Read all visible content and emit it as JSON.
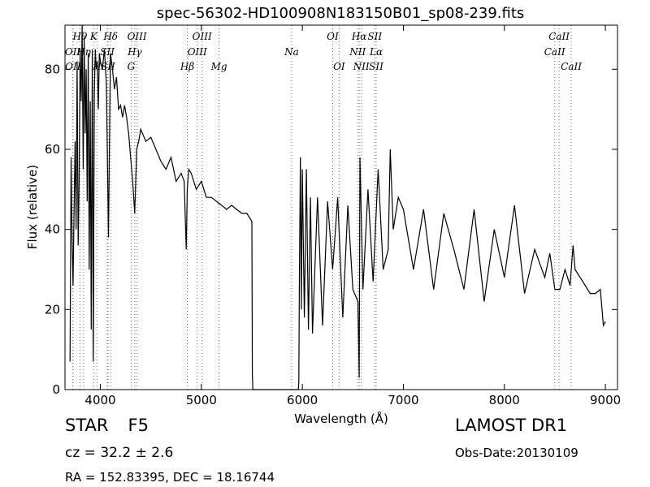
{
  "chart_data": {
    "type": "line",
    "title": "spec-56302-HD100908N183150B01_sp08-239.fits",
    "xlabel": "Wavelength (Å)",
    "ylabel": "Flux (relative)",
    "xlim": [
      3650,
      9120
    ],
    "ylim": [
      0,
      91
    ],
    "xticks": [
      4000,
      5000,
      6000,
      7000,
      8000,
      9000
    ],
    "yticks": [
      0,
      20,
      40,
      60,
      80
    ],
    "grid": false,
    "line_color": "#000000",
    "marker_color": "#2ca02c",
    "series": [
      {
        "x": [
          3700,
          3710,
          3720,
          3730,
          3740,
          3750,
          3760,
          3770,
          3780,
          3790,
          3800,
          3810,
          3820,
          3830,
          3840,
          3850,
          3860,
          3870,
          3880,
          3890,
          3900,
          3910,
          3920,
          3930,
          3940,
          3950,
          3960,
          3970,
          3980,
          3990,
          4000,
          4020,
          4040,
          4060,
          4080,
          4100,
          4120,
          4140,
          4160,
          4180,
          4200,
          4220,
          4240,
          4260,
          4280,
          4300,
          4320,
          4340,
          4360,
          4380,
          4400,
          4450,
          4500,
          4550,
          4600,
          4650,
          4700,
          4750,
          4800,
          4830,
          4850,
          4861,
          4875,
          4900,
          4950,
          5000,
          5050,
          5100,
          5150,
          5200,
          5250,
          5300,
          5350,
          5400,
          5450,
          5500,
          5505,
          5510,
          5800,
          5960,
          5965,
          5970,
          5980,
          5990,
          6000,
          6020,
          6040,
          6060,
          6080,
          6100,
          6150,
          6200,
          6250,
          6300,
          6350,
          6400,
          6450,
          6500,
          6550,
          6563,
          6570,
          6600,
          6650,
          6700,
          6750,
          6800,
          6850,
          6870,
          6900,
          6950,
          7000,
          7100,
          7200,
          7300,
          7400,
          7500,
          7600,
          7700,
          7800,
          7900,
          8000,
          8100,
          8200,
          8300,
          8400,
          8450,
          8500,
          8550,
          8600,
          8650,
          8680,
          8700,
          8750,
          8800,
          8850,
          8900,
          8950,
          8980,
          9000
        ],
        "y": [
          7,
          58,
          38,
          26,
          45,
          62,
          40,
          82,
          36,
          52,
          85,
          72,
          91,
          55,
          88,
          64,
          80,
          47,
          84,
          30,
          72,
          15,
          85,
          7,
          74,
          85,
          80,
          82,
          70,
          84,
          82,
          80,
          85,
          76,
          38,
          84,
          80,
          75,
          78,
          70,
          71,
          68,
          71,
          68,
          64,
          58,
          52,
          44,
          60,
          62,
          65,
          62,
          63,
          60,
          57,
          55,
          58,
          52,
          54,
          52,
          35,
          50,
          55,
          54,
          50,
          52,
          48,
          48,
          47,
          46,
          45,
          46,
          45,
          44,
          44,
          42,
          4,
          0,
          0,
          0,
          2,
          25,
          58,
          20,
          55,
          18,
          55,
          15,
          48,
          14,
          48,
          16,
          47,
          30,
          48,
          18,
          46,
          25,
          22,
          3,
          58,
          25,
          50,
          27,
          55,
          30,
          35,
          60,
          40,
          48,
          45,
          30,
          45,
          25,
          44,
          35,
          25,
          45,
          22,
          40,
          28,
          46,
          24,
          35,
          28,
          34,
          25,
          25,
          30,
          26,
          36,
          30,
          28,
          26,
          24,
          24,
          25,
          16,
          17
        ]
      }
    ],
    "lines": [
      {
        "label": "Hθ",
        "x": 3798,
        "row": 1
      },
      {
        "label": "OII",
        "x": 3727,
        "row": 2
      },
      {
        "label": "OII",
        "x": 3729,
        "row": 3
      },
      {
        "label": "K",
        "x": 3934,
        "row": 1
      },
      {
        "label": "Hη",
        "x": 3835,
        "row": 2
      },
      {
        "label": "H",
        "x": 3968,
        "row": 3
      },
      {
        "label": "Hδ",
        "x": 4102,
        "row": 1
      },
      {
        "label": "SII",
        "x": 4069,
        "row": 2
      },
      {
        "label": "SII",
        "x": 4076,
        "row": 3
      },
      {
        "label": "OIII",
        "x": 4363,
        "row": 1
      },
      {
        "label": "Hγ",
        "x": 4341,
        "row": 2
      },
      {
        "label": "G",
        "x": 4305,
        "row": 3
      },
      {
        "label": "OIII",
        "x": 5007,
        "row": 1
      },
      {
        "label": "OIII",
        "x": 4959,
        "row": 2
      },
      {
        "label": "Hβ",
        "x": 4861,
        "row": 3
      },
      {
        "label": "Mg",
        "x": 5175,
        "row": 3
      },
      {
        "label": "Na",
        "x": 5894,
        "row": 2
      },
      {
        "label": "OI",
        "x": 6300,
        "row": 1
      },
      {
        "label": "OI",
        "x": 6364,
        "row": 3
      },
      {
        "label": "Hα",
        "x": 6563,
        "row": 1
      },
      {
        "label": "NII",
        "x": 6548,
        "row": 2
      },
      {
        "label": "NII",
        "x": 6583,
        "row": 3
      },
      {
        "label": "SII",
        "x": 6717,
        "row": 1
      },
      {
        "label": "Lα",
        "x": 6731,
        "row": 2
      },
      {
        "label": "SII",
        "x": 6731,
        "row": 3
      },
      {
        "label": "CaII",
        "x": 8542,
        "row": 1
      },
      {
        "label": "CaII",
        "x": 8498,
        "row": 2
      },
      {
        "label": "CaII",
        "x": 8662,
        "row": 3
      }
    ]
  },
  "info": {
    "object_class": "STAR",
    "subclass": "F5",
    "redshift": "cz = 32.2  ± 2.6",
    "coordinates": "RA = 152.83395, DEC = 18.16744",
    "survey": "LAMOST DR1",
    "obs_date": "Obs-Date:20130109"
  }
}
